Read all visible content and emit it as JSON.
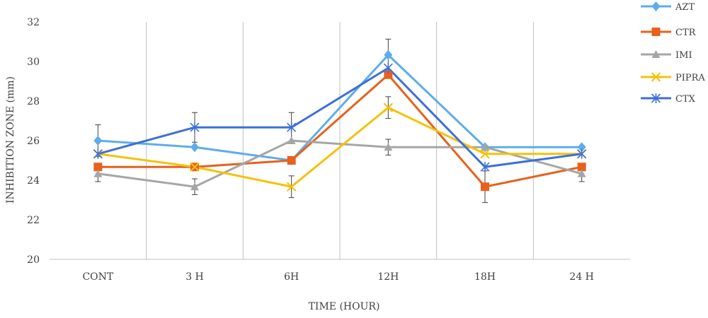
{
  "chart_data": {
    "type": "line",
    "title": "",
    "xlabel": "TIME (HOUR)",
    "ylabel": "INHIBITION ZONE (mm)",
    "categories": [
      "CONT",
      "3 H",
      "6H",
      "12H",
      "18H",
      "24 H"
    ],
    "ylim": [
      20,
      32
    ],
    "yticks": [
      20,
      22,
      24,
      26,
      28,
      30,
      32
    ],
    "grid": "vertical",
    "legend_position": "top-right",
    "series": [
      {
        "name": "AZT",
        "color": "#5DADEC",
        "marker": "diamond",
        "values": [
          26.0,
          25.67,
          25.0,
          30.33,
          25.67,
          25.67
        ],
        "errors": [
          0.8,
          0.0,
          0.0,
          0.8,
          0.0,
          0.0
        ]
      },
      {
        "name": "CTR",
        "color": "#E8601C",
        "marker": "square",
        "values": [
          24.67,
          24.67,
          25.0,
          29.33,
          23.67,
          24.67
        ],
        "errors": [
          0.0,
          0.0,
          0.0,
          0.0,
          0.8,
          0.0
        ]
      },
      {
        "name": "IMI",
        "color": "#A6A6A6",
        "marker": "triangle",
        "values": [
          24.33,
          23.67,
          26.0,
          25.67,
          25.67,
          24.33
        ],
        "errors": [
          0.4,
          0.4,
          0.0,
          0.4,
          0.0,
          0.4
        ]
      },
      {
        "name": "PIPRA",
        "color": "#F5C20A",
        "marker": "x",
        "values": [
          25.33,
          24.67,
          23.67,
          27.67,
          25.33,
          25.33
        ],
        "errors": [
          0.0,
          0.0,
          0.55,
          0.55,
          0.0,
          0.0
        ]
      },
      {
        "name": "CTX",
        "color": "#3E6FD8",
        "marker": "asterisk",
        "values": [
          25.33,
          26.67,
          26.67,
          29.67,
          24.67,
          25.33
        ],
        "errors": [
          0.0,
          0.75,
          0.75,
          0.0,
          0.0,
          0.0
        ]
      }
    ]
  }
}
